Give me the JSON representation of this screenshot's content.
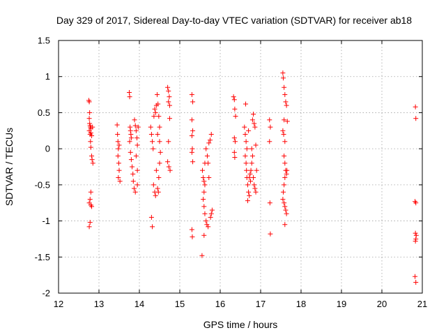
{
  "chart_data": {
    "type": "scatter",
    "title": "Day 329 of 2017, Sidereal Day-to-day VTEC variation (SDTVAR) for receiver ab18",
    "xlabel": "GPS time / hours",
    "ylabel": "SDTVAR / TECUs",
    "xlim": [
      12,
      21
    ],
    "ylim": [
      -2,
      1.5
    ],
    "xticks": [
      12,
      13,
      14,
      15,
      16,
      17,
      18,
      19,
      20,
      21
    ],
    "yticks": [
      -2,
      -1.5,
      -1,
      -0.5,
      0,
      0.5,
      1,
      1.5
    ],
    "xtick_labels": [
      "12",
      "13",
      "14",
      "15",
      "16",
      "17",
      "18",
      "19",
      "20",
      "21"
    ],
    "ytick_labels": [
      "-2",
      "-1.5",
      "-1",
      "-0.5",
      "0",
      "0.5",
      "1",
      "1.5"
    ],
    "grid": true,
    "marker": "+",
    "color": "#ff0000",
    "series": [
      {
        "name": "SDTVAR",
        "points": [
          [
            12.75,
            0.67
          ],
          [
            12.76,
            0.65
          ],
          [
            12.77,
            0.5
          ],
          [
            12.76,
            0.42
          ],
          [
            12.77,
            0.35
          ],
          [
            12.78,
            0.32
          ],
          [
            12.79,
            0.3
          ],
          [
            12.8,
            0.28
          ],
          [
            12.76,
            0.25
          ],
          [
            12.78,
            0.2
          ],
          [
            12.8,
            0.22
          ],
          [
            12.82,
            0.18
          ],
          [
            12.84,
            0.3
          ],
          [
            12.79,
            0.1
          ],
          [
            12.8,
            0.02
          ],
          [
            12.82,
            -0.1
          ],
          [
            12.83,
            -0.15
          ],
          [
            12.85,
            -0.2
          ],
          [
            12.8,
            -0.6
          ],
          [
            12.78,
            -0.7
          ],
          [
            12.76,
            -0.75
          ],
          [
            12.8,
            -0.78
          ],
          [
            12.82,
            -0.8
          ],
          [
            12.78,
            -1.02
          ],
          [
            12.76,
            -1.08
          ],
          [
            13.45,
            0.33
          ],
          [
            13.46,
            0.2
          ],
          [
            13.47,
            0.1
          ],
          [
            13.48,
            0.0
          ],
          [
            13.47,
            -0.1
          ],
          [
            13.49,
            -0.2
          ],
          [
            13.5,
            -0.3
          ],
          [
            13.48,
            -0.4
          ],
          [
            13.52,
            -0.45
          ],
          [
            13.5,
            0.05
          ],
          [
            13.75,
            0.78
          ],
          [
            13.76,
            0.72
          ],
          [
            13.77,
            0.3
          ],
          [
            13.78,
            0.25
          ],
          [
            13.79,
            0.2
          ],
          [
            13.8,
            0.15
          ],
          [
            13.76,
            0.1
          ],
          [
            13.78,
            -0.05
          ],
          [
            13.8,
            -0.15
          ],
          [
            13.82,
            -0.25
          ],
          [
            13.84,
            -0.35
          ],
          [
            13.85,
            -0.45
          ],
          [
            13.87,
            -0.55
          ],
          [
            13.9,
            -0.6
          ],
          [
            13.88,
            0.4
          ],
          [
            13.9,
            0.32
          ],
          [
            13.92,
            0.25
          ],
          [
            13.94,
            0.15
          ],
          [
            13.95,
            0.05
          ],
          [
            13.92,
            -0.1
          ],
          [
            13.95,
            -0.3
          ],
          [
            13.97,
            0.3
          ],
          [
            13.95,
            -0.5
          ],
          [
            14.28,
            0.3
          ],
          [
            14.3,
            0.2
          ],
          [
            14.32,
            0.1
          ],
          [
            14.34,
            0.0
          ],
          [
            14.36,
            0.45
          ],
          [
            14.38,
            0.55
          ],
          [
            14.4,
            0.5
          ],
          [
            14.42,
            0.6
          ],
          [
            14.44,
            0.75
          ],
          [
            14.46,
            0.62
          ],
          [
            14.48,
            0.45
          ],
          [
            14.5,
            0.3
          ],
          [
            14.45,
            0.2
          ],
          [
            14.5,
            0.1
          ],
          [
            14.52,
            -0.05
          ],
          [
            14.35,
            -0.5
          ],
          [
            14.38,
            -0.6
          ],
          [
            14.4,
            -0.65
          ],
          [
            14.45,
            -0.55
          ],
          [
            14.47,
            -0.6
          ],
          [
            14.48,
            -0.4
          ],
          [
            14.3,
            -0.95
          ],
          [
            14.32,
            -1.08
          ],
          [
            14.42,
            -0.3
          ],
          [
            14.5,
            -0.2
          ],
          [
            14.7,
            0.85
          ],
          [
            14.72,
            0.8
          ],
          [
            14.74,
            0.72
          ],
          [
            14.72,
            0.65
          ],
          [
            14.75,
            0.6
          ],
          [
            14.72,
            0.1
          ],
          [
            14.7,
            -0.18
          ],
          [
            14.73,
            -0.25
          ],
          [
            14.76,
            -0.3
          ],
          [
            14.75,
            0.42
          ],
          [
            15.3,
            0.75
          ],
          [
            15.32,
            0.65
          ],
          [
            15.3,
            0.4
          ],
          [
            15.32,
            0.25
          ],
          [
            15.3,
            0.18
          ],
          [
            15.31,
            0.0
          ],
          [
            15.3,
            -0.05
          ],
          [
            15.32,
            -0.18
          ],
          [
            15.3,
            -1.12
          ],
          [
            15.31,
            -1.22
          ],
          [
            15.55,
            -1.48
          ],
          [
            15.56,
            -0.3
          ],
          [
            15.58,
            -0.4
          ],
          [
            15.6,
            -0.45
          ],
          [
            15.62,
            -0.5
          ],
          [
            15.6,
            -0.6
          ],
          [
            15.58,
            -0.7
          ],
          [
            15.6,
            -0.8
          ],
          [
            15.62,
            -0.9
          ],
          [
            15.65,
            -1.0
          ],
          [
            15.67,
            -1.05
          ],
          [
            15.7,
            -1.08
          ],
          [
            15.6,
            -1.2
          ],
          [
            15.65,
            0.0
          ],
          [
            15.68,
            -0.1
          ],
          [
            15.7,
            -0.2
          ],
          [
            15.72,
            0.08
          ],
          [
            15.75,
            0.12
          ],
          [
            15.78,
            0.2
          ],
          [
            15.8,
            -0.85
          ],
          [
            15.78,
            -0.9
          ],
          [
            15.76,
            -0.95
          ],
          [
            15.72,
            -0.4
          ],
          [
            15.62,
            -0.2
          ],
          [
            16.33,
            0.72
          ],
          [
            16.35,
            0.68
          ],
          [
            16.36,
            0.55
          ],
          [
            16.38,
            0.45
          ],
          [
            16.35,
            0.15
          ],
          [
            16.37,
            0.1
          ],
          [
            16.35,
            -0.05
          ],
          [
            16.36,
            -0.12
          ],
          [
            16.63,
            0.62
          ],
          [
            16.6,
            0.3
          ],
          [
            16.62,
            0.2
          ],
          [
            16.64,
            0.1
          ],
          [
            16.66,
            0.0
          ],
          [
            16.62,
            -0.1
          ],
          [
            16.64,
            -0.2
          ],
          [
            16.65,
            -0.3
          ],
          [
            16.66,
            -0.4
          ],
          [
            16.68,
            -0.5
          ],
          [
            16.7,
            -0.6
          ],
          [
            16.68,
            -0.72
          ],
          [
            16.72,
            -0.4
          ],
          [
            16.74,
            -0.35
          ],
          [
            16.75,
            -0.45
          ],
          [
            16.76,
            -0.3
          ],
          [
            16.78,
            -0.2
          ],
          [
            16.8,
            -0.1
          ],
          [
            16.82,
            -0.4
          ],
          [
            16.84,
            -0.5
          ],
          [
            16.86,
            -0.55
          ],
          [
            16.88,
            -0.6
          ],
          [
            16.9,
            -0.3
          ],
          [
            16.8,
            0.4
          ],
          [
            16.82,
            0.48
          ],
          [
            16.84,
            0.35
          ],
          [
            16.86,
            0.3
          ],
          [
            16.88,
            0.05
          ],
          [
            16.78,
            0.0
          ],
          [
            16.7,
            0.25
          ],
          [
            16.72,
            -0.65
          ],
          [
            17.22,
            0.4
          ],
          [
            17.24,
            0.3
          ],
          [
            17.22,
            0.1
          ],
          [
            17.23,
            -0.75
          ],
          [
            17.24,
            -1.18
          ],
          [
            17.55,
            1.05
          ],
          [
            17.56,
            0.98
          ],
          [
            17.58,
            0.85
          ],
          [
            17.6,
            0.75
          ],
          [
            17.62,
            0.65
          ],
          [
            17.64,
            0.6
          ],
          [
            17.58,
            0.4
          ],
          [
            17.55,
            0.25
          ],
          [
            17.57,
            0.2
          ],
          [
            17.6,
            0.1
          ],
          [
            17.58,
            -0.1
          ],
          [
            17.6,
            -0.2
          ],
          [
            17.62,
            -0.3
          ],
          [
            17.64,
            -0.35
          ],
          [
            17.6,
            -0.4
          ],
          [
            17.58,
            -0.5
          ],
          [
            17.56,
            -0.6
          ],
          [
            17.55,
            -0.7
          ],
          [
            17.58,
            -0.75
          ],
          [
            17.6,
            -0.8
          ],
          [
            17.62,
            -0.85
          ],
          [
            17.64,
            -0.9
          ],
          [
            17.6,
            -1.05
          ],
          [
            17.66,
            0.38
          ],
          [
            17.65,
            -0.3
          ],
          [
            20.83,
            0.58
          ],
          [
            20.84,
            0.42
          ],
          [
            20.82,
            -0.73
          ],
          [
            20.84,
            -0.75
          ],
          [
            20.83,
            -1.17
          ],
          [
            20.85,
            -1.2
          ],
          [
            20.84,
            -1.25
          ],
          [
            20.83,
            -1.28
          ],
          [
            20.82,
            -1.77
          ],
          [
            20.84,
            -1.85
          ]
        ]
      }
    ]
  }
}
